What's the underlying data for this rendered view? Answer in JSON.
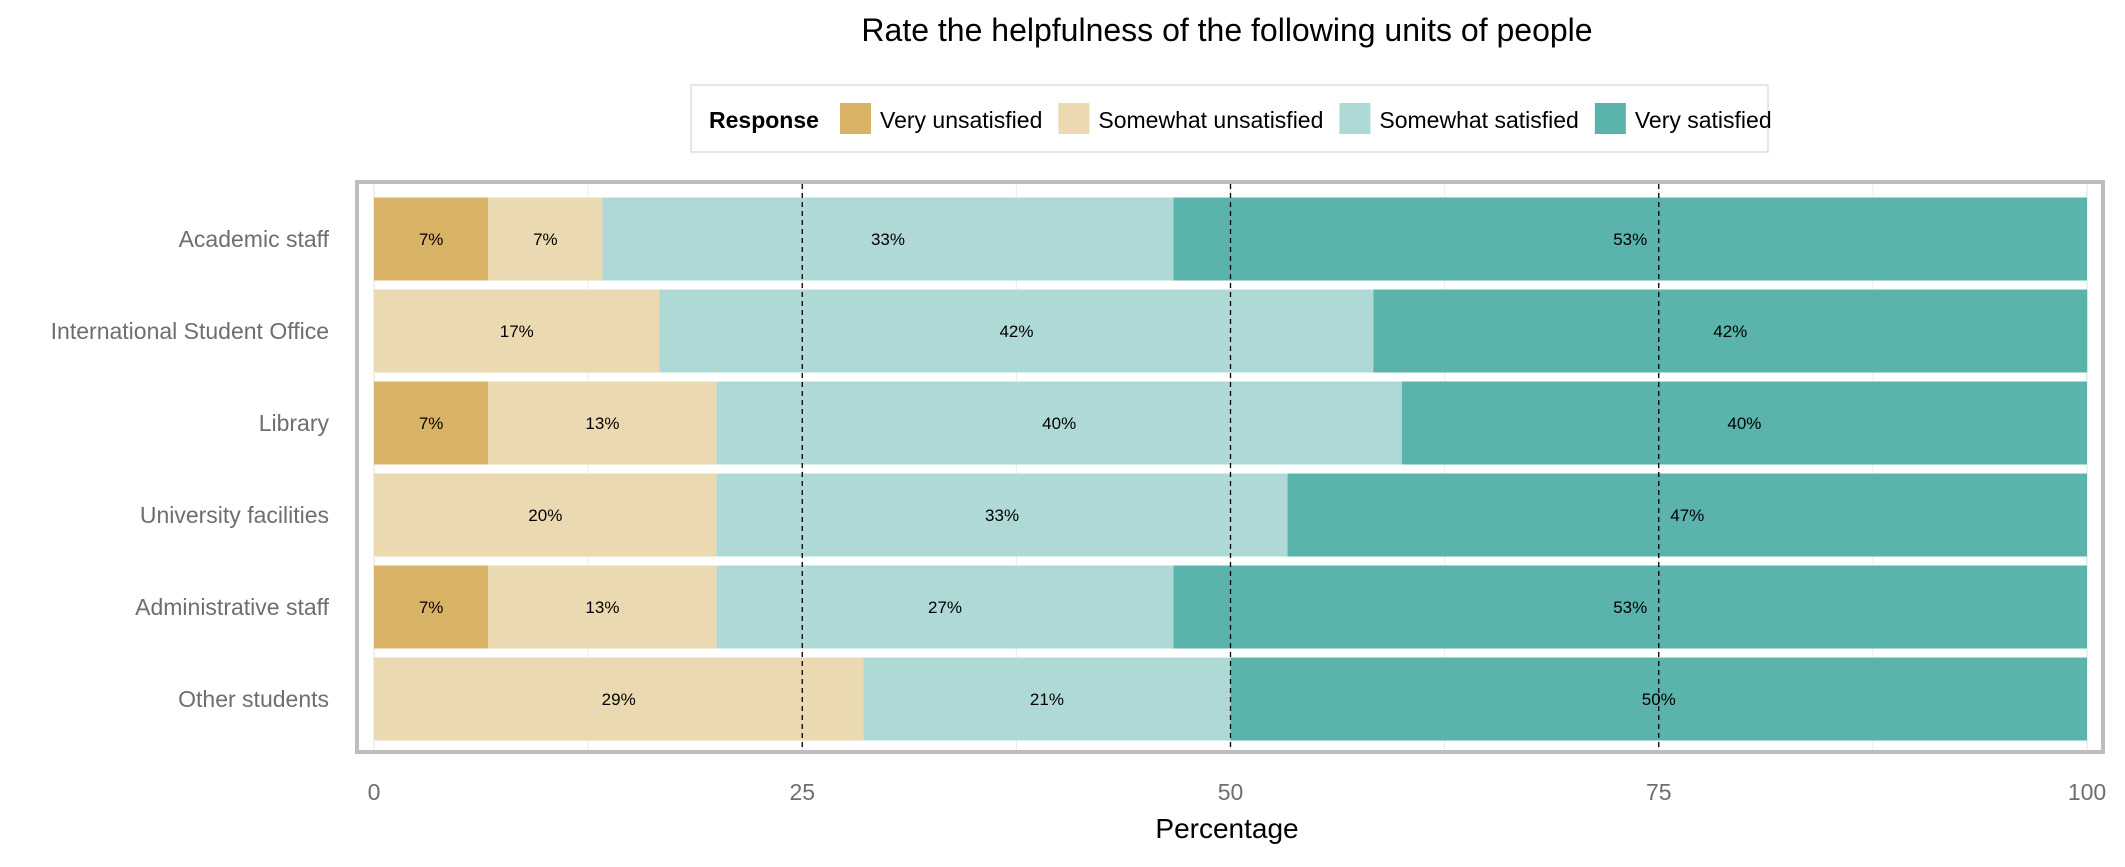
{
  "chart_data": {
    "type": "bar",
    "orientation": "horizontal",
    "stacked": true,
    "title": "Rate the helpfulness of the following units of people",
    "xlabel": "Percentage",
    "ylabel": "",
    "xlim": [
      0,
      100
    ],
    "xticks": [
      0,
      25,
      50,
      75,
      100
    ],
    "grid": true,
    "legend_title": "Response",
    "legend_position": "top",
    "categories": [
      "Academic staff",
      "International Student Office",
      "Library",
      "University facilities",
      "Administrative staff",
      "Other students"
    ],
    "series": [
      {
        "name": "Very unsatisfied",
        "color": "#d8b365",
        "values": [
          6.67,
          0,
          6.67,
          0,
          6.67,
          0
        ],
        "labels": [
          "7%",
          "",
          "7%",
          "",
          "7%",
          ""
        ]
      },
      {
        "name": "Somewhat unsatisfied",
        "color": "#ebd9b2",
        "values": [
          6.67,
          16.67,
          13.33,
          20,
          13.33,
          28.57
        ],
        "labels": [
          "7%",
          "17%",
          "13%",
          "20%",
          "13%",
          "29%"
        ]
      },
      {
        "name": "Somewhat satisfied",
        "color": "#aed9d6",
        "values": [
          33.33,
          41.67,
          40,
          33.33,
          26.67,
          21.43
        ],
        "labels": [
          "33%",
          "42%",
          "40%",
          "33%",
          "27%",
          "21%"
        ]
      },
      {
        "name": "Very satisfied",
        "color": "#5ab4ac",
        "values": [
          53.33,
          41.67,
          40,
          46.67,
          53.33,
          50
        ],
        "labels": [
          "53%",
          "42%",
          "40%",
          "47%",
          "53%",
          "50%"
        ]
      }
    ],
    "reference_lines": [
      25,
      50,
      75
    ]
  }
}
